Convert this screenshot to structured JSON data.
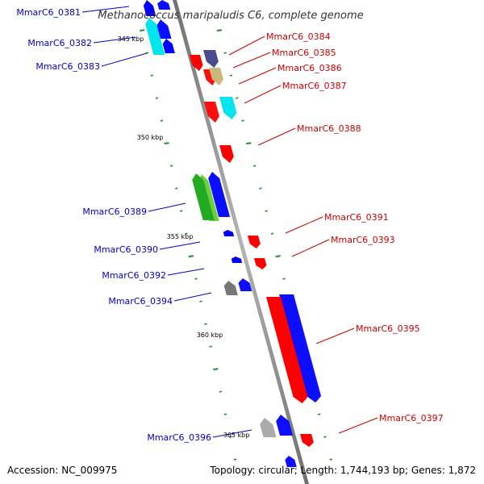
{
  "title": "Methanococcus maripaludis C6, complete genome",
  "footer": {
    "accession": "Accession: NC_009975",
    "summary": "Topology: circular; Length: 1,744,193 bp; Genes: 1,872"
  },
  "colors": {
    "backbone": "#8a8a8a",
    "forward_label": "#0000cc",
    "reverse_label": "#cc0000",
    "tick": "#228b22"
  },
  "ticks": [
    {
      "label": "345 kbp",
      "kbp": 345
    },
    {
      "label": "350 kbp",
      "kbp": 350
    },
    {
      "label": "355 kbp",
      "kbp": 355
    },
    {
      "label": "360 kbp",
      "kbp": 360
    },
    {
      "label": "365 kbp",
      "kbp": 365
    }
  ],
  "genes": [
    {
      "label": "MmarC6_0381",
      "strand": "-",
      "color": "#0000ff"
    },
    {
      "label": "MmarC6_0382",
      "strand": "-",
      "color": "#00e5ee"
    },
    {
      "label": "MmarC6_0383",
      "strand": "-",
      "color": "#0000ff"
    },
    {
      "label": "MmarC6_0384",
      "strand": "+",
      "color": "#ff0000"
    },
    {
      "label": "MmarC6_0385",
      "strand": "+",
      "color": "#4b4b8f"
    },
    {
      "label": "MmarC6_0386",
      "strand": "+",
      "color": "#c8b87a"
    },
    {
      "label": "MmarC6_0387",
      "strand": "+",
      "color": "#00e5ee"
    },
    {
      "label": "MmarC6_0388",
      "strand": "+",
      "color": "#ff0000"
    },
    {
      "label": "MmarC6_0389",
      "strand": "-",
      "color": "#22aa22"
    },
    {
      "label": "MmarC6_0390",
      "strand": "-",
      "color": "#0000ff"
    },
    {
      "label": "MmarC6_0391",
      "strand": "+",
      "color": "#ff0000"
    },
    {
      "label": "MmarC6_0392",
      "strand": "-",
      "color": "#0000ff"
    },
    {
      "label": "MmarC6_0393",
      "strand": "+",
      "color": "#ff0000"
    },
    {
      "label": "MmarC6_0394",
      "strand": "-",
      "color": "#777777"
    },
    {
      "label": "MmarC6_0395",
      "strand": "+",
      "color": "#ff0000"
    },
    {
      "label": "MmarC6_0396",
      "strand": "-",
      "color": "#aaaaaa"
    },
    {
      "label": "MmarC6_0397",
      "strand": "+",
      "color": "#ff0000"
    }
  ]
}
